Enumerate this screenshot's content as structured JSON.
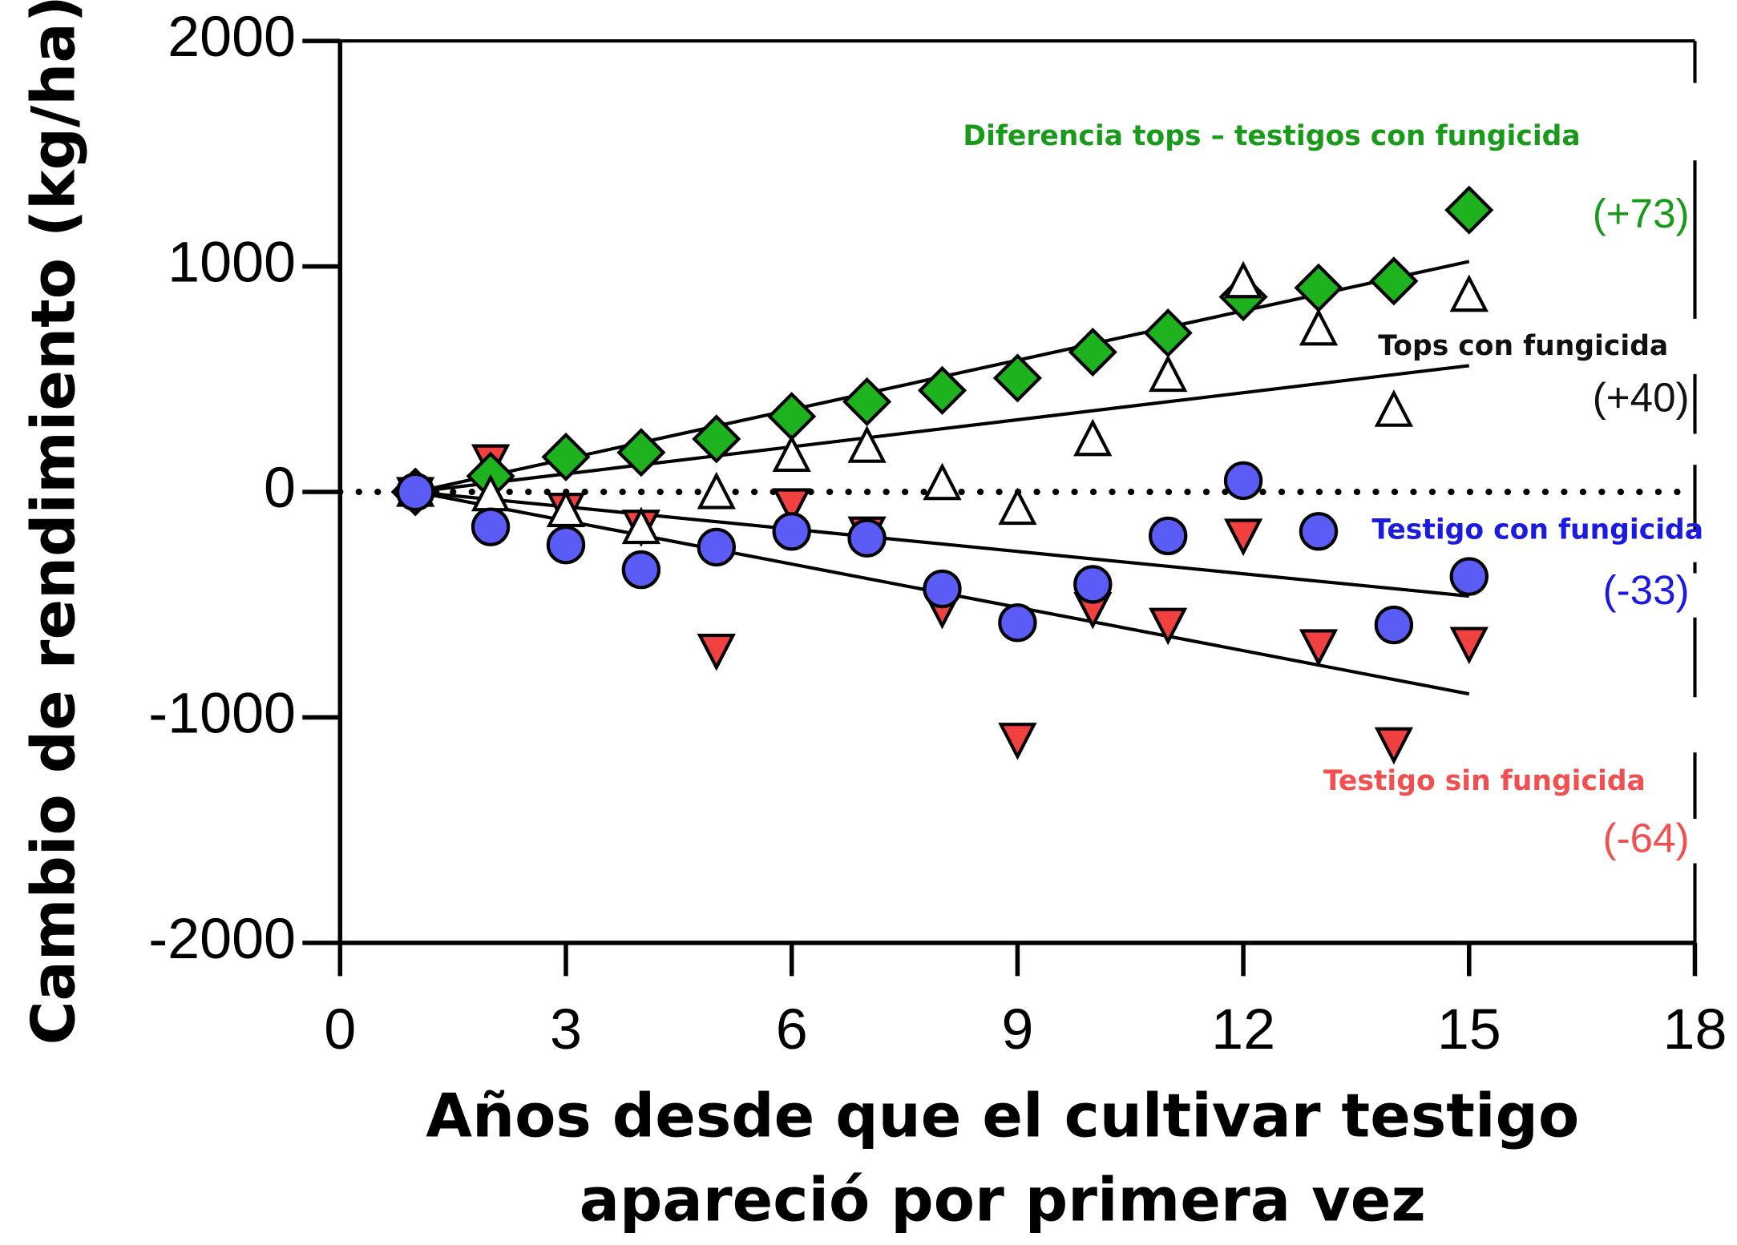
{
  "chart_data": {
    "type": "scatter",
    "x_label": [
      "Años desde que el cultivar testigo",
      "apareció por primera vez"
    ],
    "y_label": "Cambio de rendimiento (kg/ha)",
    "xlim": [
      0,
      18
    ],
    "xticks": [
      0,
      3,
      6,
      9,
      12,
      15,
      18
    ],
    "ylim": [
      -2000,
      2000
    ],
    "yticks": [
      -2000,
      -1000,
      0,
      1000,
      2000
    ],
    "reference_line": 0,
    "series": [
      {
        "name": "Testigo sin fungicida",
        "color": "#f04040",
        "marker": "triangle-down",
        "x": [
          1,
          2,
          3,
          4,
          5,
          6,
          7,
          8,
          9,
          10,
          11,
          12,
          13,
          14,
          15
        ],
        "values": [
          0,
          145,
          -70,
          -145,
          -695,
          -50,
          -175,
          -510,
          -1090,
          -510,
          -580,
          -185,
          -675,
          -1110,
          -665
        ],
        "trend": {
          "slope": -64,
          "label": "(-64)",
          "label_color": "#f05050"
        }
      },
      {
        "name": "Diferencia tops – testigos con fungicida",
        "color": "#1fb21f",
        "marker": "diamond",
        "x": [
          1,
          2,
          3,
          4,
          5,
          6,
          7,
          8,
          9,
          10,
          11,
          12,
          13,
          14,
          15
        ],
        "values": [
          0,
          70,
          155,
          175,
          235,
          335,
          400,
          450,
          505,
          620,
          705,
          865,
          905,
          935,
          1250
        ],
        "trend": {
          "slope": 73,
          "label": "(+73)",
          "label_color": "#1a9a1a"
        }
      },
      {
        "name": "Tops con fungicida",
        "color": "#ffffff",
        "marker": "triangle-up",
        "x": [
          1,
          2,
          3,
          4,
          5,
          6,
          7,
          8,
          9,
          10,
          11,
          12,
          13,
          14,
          15
        ],
        "values": [
          0,
          -20,
          -90,
          -165,
          -10,
          155,
          195,
          30,
          -80,
          225,
          510,
          925,
          715,
          355,
          865
        ],
        "trend": {
          "slope": 40,
          "label": "(+40)",
          "label_color": "#111111"
        }
      },
      {
        "name": "Testigo con fungicida",
        "color": "#5b5bf5",
        "marker": "circle",
        "x": [
          1,
          2,
          3,
          4,
          5,
          6,
          7,
          8,
          9,
          10,
          11,
          12,
          13,
          14,
          15
        ],
        "values": [
          0,
          -155,
          -235,
          -345,
          -245,
          -175,
          -205,
          -430,
          -580,
          -410,
          -195,
          50,
          -175,
          -590,
          -375
        ],
        "trend": {
          "slope": -33,
          "label": "(-33)",
          "label_color": "#1a1ae0"
        }
      }
    ]
  }
}
